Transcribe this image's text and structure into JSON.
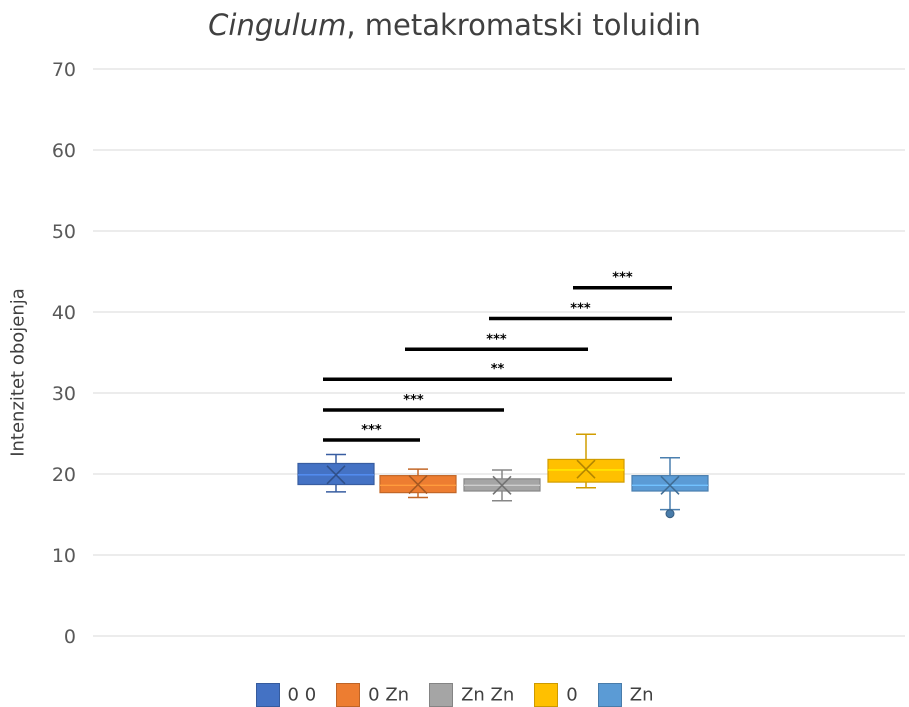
{
  "chart_data": {
    "type": "box",
    "title_italic": "Cingulum",
    "title_rest": ", metakromatski toluidin",
    "ylabel": "Intenzitet obojenja",
    "ylim": [
      0,
      70
    ],
    "yticks": [
      0,
      10,
      20,
      30,
      40,
      50,
      60,
      70
    ],
    "grid": true,
    "legend_position": "bottom",
    "categories": [
      "0 0",
      "0 Zn",
      "Zn Zn",
      "0",
      "Zn"
    ],
    "series": [
      {
        "name": "0 0",
        "color": "#4472C4",
        "box": {
          "min": 17.8,
          "q1": 18.7,
          "median": 19.9,
          "q3": 21.3,
          "max": 22.4,
          "mean": 19.9
        },
        "outliers": []
      },
      {
        "name": "0 Zn",
        "color": "#ED7D31",
        "box": {
          "min": 17.1,
          "q1": 17.7,
          "median": 18.6,
          "q3": 19.8,
          "max": 20.6,
          "mean": 18.7
        },
        "outliers": []
      },
      {
        "name": "Zn Zn",
        "color": "#A5A5A5",
        "box": {
          "min": 16.7,
          "q1": 17.9,
          "median": 18.6,
          "q3": 19.4,
          "max": 20.5,
          "mean": 18.6
        },
        "outliers": []
      },
      {
        "name": "0",
        "color": "#FFC000",
        "box": {
          "min": 18.3,
          "q1": 19.0,
          "median": 20.5,
          "q3": 21.8,
          "max": 24.9,
          "mean": 20.6
        },
        "outliers": []
      },
      {
        "name": "Zn",
        "color": "#5B9BD5",
        "box": {
          "min": 15.6,
          "q1": 17.9,
          "median": 18.6,
          "q3": 19.8,
          "max": 22.0,
          "mean": 18.6
        },
        "outliers": [
          15.1
        ]
      }
    ],
    "significance": [
      {
        "from": 0,
        "to": 1,
        "y": 24.2,
        "label": "***"
      },
      {
        "from": 0,
        "to": 2,
        "y": 27.9,
        "label": "***"
      },
      {
        "from": 0,
        "to": 4,
        "y": 31.7,
        "label": "**"
      },
      {
        "from": 1,
        "to": 3,
        "y": 35.4,
        "label": "***"
      },
      {
        "from": 2,
        "to": 4,
        "y": 39.2,
        "label": "***"
      },
      {
        "from": 3,
        "to": 4,
        "y": 43.0,
        "label": "***"
      }
    ]
  }
}
